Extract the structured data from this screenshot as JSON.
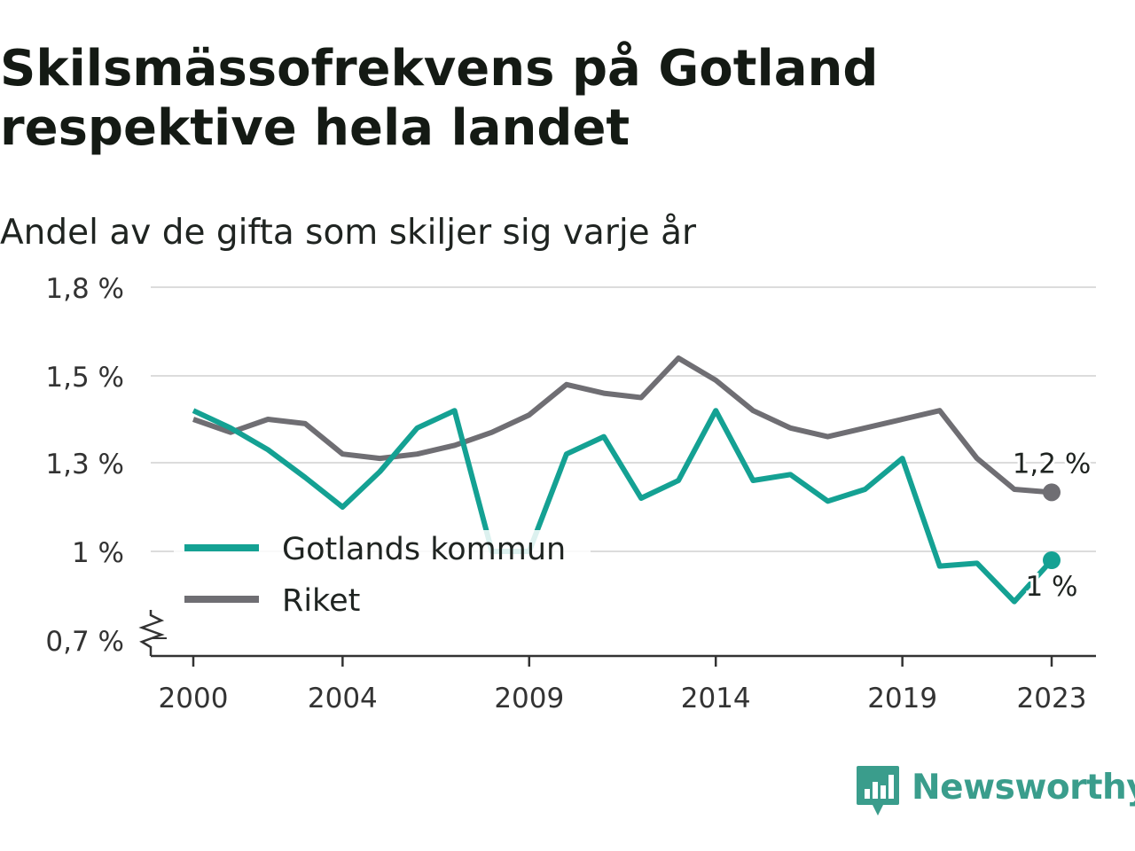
{
  "title": "Skilsmässofrekvens på Gotland respektive hela landet",
  "subtitle": "Andel av de gifta som skiljer sig varje år",
  "brand": "Newsworthy",
  "colors": {
    "gotland": "#14a193",
    "riket": "#6f6e73",
    "grid": "#dcdcdc",
    "axis": "#333333",
    "brand": "#3a9d8c"
  },
  "chart_data": {
    "type": "line",
    "title": "Skilsmässofrekvens på Gotland respektive hela landet",
    "subtitle": "Andel av de gifta som skiljer sig varje år",
    "x": [
      2000,
      2001,
      2002,
      2003,
      2004,
      2005,
      2006,
      2007,
      2008,
      2009,
      2010,
      2011,
      2012,
      2013,
      2014,
      2015,
      2016,
      2017,
      2018,
      2019,
      2020,
      2021,
      2022,
      2023
    ],
    "x_tick_labels": [
      "2000",
      "2004",
      "2009",
      "2014",
      "2019",
      "2023"
    ],
    "x_ticks": [
      2000,
      2004,
      2009,
      2014,
      2019,
      2023
    ],
    "y_tick_labels": [
      "0,7 %",
      "1 %",
      "1,3 %",
      "1,5 %",
      "1,8 %"
    ],
    "ylim": [
      0.7,
      1.8
    ],
    "y_axis_break": true,
    "grid": true,
    "legend_position": "bottom-left",
    "series": [
      {
        "name": "Gotlands kommun",
        "color": "#14a193",
        "values": [
          1.42,
          1.38,
          1.33,
          1.25,
          1.15,
          1.27,
          1.38,
          1.42,
          1.0,
          1.0,
          1.32,
          1.36,
          1.18,
          1.24,
          1.42,
          1.24,
          1.26,
          1.17,
          1.21,
          1.31,
          0.95,
          0.96,
          0.83,
          0.97
        ],
        "end_label": "1 %"
      },
      {
        "name": "Riket",
        "color": "#6f6e73",
        "values": [
          1.4,
          1.37,
          1.4,
          1.39,
          1.32,
          1.31,
          1.32,
          1.34,
          1.37,
          1.41,
          1.48,
          1.46,
          1.45,
          1.56,
          1.49,
          1.42,
          1.38,
          1.36,
          1.38,
          1.4,
          1.42,
          1.31,
          1.21,
          1.2
        ],
        "end_label": "1,2 %"
      }
    ]
  }
}
